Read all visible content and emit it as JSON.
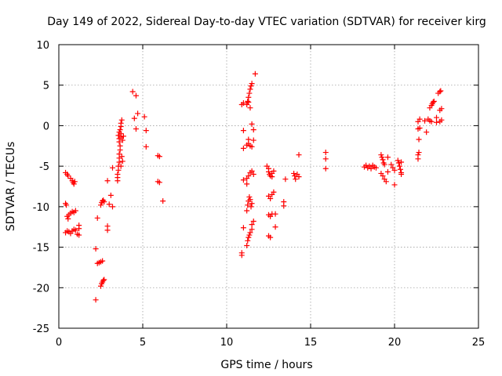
{
  "chart_data": {
    "type": "scatter",
    "title": "Day 149 of 2022, Sidereal Day-to-day VTEC variation (SDTVAR) for receiver kirg",
    "xlabel": "GPS time / hours",
    "ylabel": "SDTVAR / TECUs",
    "xlim": [
      0,
      25
    ],
    "ylim": [
      -25,
      10
    ],
    "xticks": [
      "0",
      "5",
      "10",
      "15",
      "20",
      "25"
    ],
    "yticks": [
      "-25",
      "-20",
      "-15",
      "-10",
      "-5",
      "0",
      "5",
      "10"
    ],
    "grid": true,
    "marker": "plus",
    "color": "#ff0000",
    "points": [
      [
        0.4,
        -5.8
      ],
      [
        0.5,
        -6.0
      ],
      [
        0.55,
        -6.2
      ],
      [
        0.7,
        -6.5
      ],
      [
        0.8,
        -6.8
      ],
      [
        0.85,
        -7.0
      ],
      [
        0.9,
        -7.2
      ],
      [
        0.95,
        -6.9
      ],
      [
        0.4,
        -9.6
      ],
      [
        0.45,
        -9.8
      ],
      [
        0.5,
        -11.2
      ],
      [
        0.55,
        -11.5
      ],
      [
        0.6,
        -11.0
      ],
      [
        0.7,
        -10.8
      ],
      [
        0.8,
        -10.6
      ],
      [
        0.9,
        -10.7
      ],
      [
        1.0,
        -10.5
      ],
      [
        0.4,
        -13.2
      ],
      [
        0.5,
        -13.0
      ],
      [
        0.6,
        -13.1
      ],
      [
        0.7,
        -13.3
      ],
      [
        0.8,
        -13.0
      ],
      [
        0.9,
        -12.8
      ],
      [
        1.0,
        -12.9
      ],
      [
        1.1,
        -13.4
      ],
      [
        1.2,
        -12.3
      ],
      [
        1.2,
        -12.7
      ],
      [
        1.2,
        -13.5
      ],
      [
        2.2,
        -21.5
      ],
      [
        2.2,
        -15.2
      ],
      [
        2.3,
        -17.0
      ],
      [
        2.4,
        -16.9
      ],
      [
        2.5,
        -16.8
      ],
      [
        2.6,
        -16.7
      ],
      [
        2.3,
        -11.4
      ],
      [
        2.5,
        -19.8
      ],
      [
        2.55,
        -19.5
      ],
      [
        2.6,
        -19.3
      ],
      [
        2.65,
        -19.1
      ],
      [
        2.7,
        -19.0
      ],
      [
        2.5,
        -9.8
      ],
      [
        2.55,
        -9.5
      ],
      [
        2.6,
        -9.3
      ],
      [
        2.65,
        -9.2
      ],
      [
        2.7,
        -9.4
      ],
      [
        2.9,
        -12.4
      ],
      [
        2.9,
        -12.9
      ],
      [
        2.9,
        -6.8
      ],
      [
        3.0,
        -9.7
      ],
      [
        3.1,
        -8.6
      ],
      [
        3.2,
        -10.0
      ],
      [
        3.2,
        -5.2
      ],
      [
        3.5,
        -6.8
      ],
      [
        3.5,
        -6.4
      ],
      [
        3.5,
        -6.0
      ],
      [
        3.55,
        -5.5
      ],
      [
        3.55,
        -5.0
      ],
      [
        3.6,
        -4.5
      ],
      [
        3.6,
        -4.0
      ],
      [
        3.6,
        -3.5
      ],
      [
        3.65,
        -3.0
      ],
      [
        3.65,
        -2.5
      ],
      [
        3.6,
        -2.0
      ],
      [
        3.6,
        -1.6
      ],
      [
        3.55,
        -1.2
      ],
      [
        3.6,
        -0.8
      ],
      [
        3.7,
        -1.4
      ],
      [
        3.7,
        -1.0
      ],
      [
        3.65,
        -0.5
      ],
      [
        3.7,
        -0.1
      ],
      [
        3.7,
        0.3
      ],
      [
        3.75,
        0.7
      ],
      [
        3.75,
        -3.8
      ],
      [
        3.8,
        -4.4
      ],
      [
        3.7,
        -5.0
      ],
      [
        3.8,
        -1.8
      ],
      [
        3.85,
        -1.3
      ],
      [
        4.4,
        4.2
      ],
      [
        4.6,
        3.7
      ],
      [
        4.5,
        0.9
      ],
      [
        4.7,
        1.5
      ],
      [
        4.6,
        -0.4
      ],
      [
        5.1,
        1.1
      ],
      [
        5.2,
        -0.6
      ],
      [
        5.2,
        -2.6
      ],
      [
        5.9,
        -3.7
      ],
      [
        6.0,
        -3.8
      ],
      [
        5.9,
        -6.9
      ],
      [
        6.0,
        -7.0
      ],
      [
        6.2,
        -9.3
      ],
      [
        10.9,
        -15.7
      ],
      [
        10.9,
        -16.0
      ],
      [
        11.0,
        -12.6
      ],
      [
        11.0,
        -6.7
      ],
      [
        11.0,
        -2.8
      ],
      [
        11.0,
        -0.6
      ],
      [
        10.9,
        2.6
      ],
      [
        11.0,
        2.8
      ],
      [
        11.2,
        -14.8
      ],
      [
        11.25,
        -14.2
      ],
      [
        11.3,
        -13.8
      ],
      [
        11.35,
        -13.5
      ],
      [
        11.4,
        -13.2
      ],
      [
        11.5,
        -12.8
      ],
      [
        11.5,
        -12.2
      ],
      [
        11.6,
        -11.8
      ],
      [
        11.2,
        -10.5
      ],
      [
        11.25,
        -9.8
      ],
      [
        11.3,
        -9.3
      ],
      [
        11.35,
        -8.8
      ],
      [
        11.4,
        -9.1
      ],
      [
        11.5,
        -9.6
      ],
      [
        11.45,
        -10.0
      ],
      [
        11.2,
        -6.5
      ],
      [
        11.3,
        -6.2
      ],
      [
        11.4,
        -5.8
      ],
      [
        11.5,
        -5.6
      ],
      [
        11.2,
        -7.2
      ],
      [
        11.6,
        -6.0
      ],
      [
        11.2,
        -2.4
      ],
      [
        11.3,
        -2.2
      ],
      [
        11.4,
        -2.5
      ],
      [
        11.5,
        -2.6
      ],
      [
        11.3,
        -1.7
      ],
      [
        11.6,
        -1.8
      ],
      [
        11.2,
        2.6
      ],
      [
        11.25,
        3.0
      ],
      [
        11.3,
        3.5
      ],
      [
        11.35,
        4.0
      ],
      [
        11.4,
        4.5
      ],
      [
        11.45,
        4.9
      ],
      [
        11.5,
        5.2
      ],
      [
        11.4,
        2.2
      ],
      [
        11.3,
        2.9
      ],
      [
        11.5,
        0.2
      ],
      [
        11.6,
        -0.5
      ],
      [
        11.7,
        6.4
      ],
      [
        12.4,
        -5.0
      ],
      [
        12.5,
        -5.3
      ],
      [
        12.5,
        -5.7
      ],
      [
        12.55,
        -6.0
      ],
      [
        12.6,
        -6.2
      ],
      [
        12.7,
        -5.9
      ],
      [
        12.8,
        -5.6
      ],
      [
        12.7,
        -6.3
      ],
      [
        12.5,
        -8.7
      ],
      [
        12.6,
        -9.0
      ],
      [
        12.7,
        -8.5
      ],
      [
        12.8,
        -8.2
      ],
      [
        12.5,
        -11.0
      ],
      [
        12.6,
        -11.2
      ],
      [
        12.7,
        -10.9
      ],
      [
        12.5,
        -13.6
      ],
      [
        12.6,
        -13.8
      ],
      [
        12.9,
        -12.5
      ],
      [
        12.9,
        -10.9
      ],
      [
        13.4,
        -9.4
      ],
      [
        13.4,
        -9.9
      ],
      [
        13.5,
        -6.6
      ],
      [
        14.0,
        -5.9
      ],
      [
        14.05,
        -6.2
      ],
      [
        14.1,
        -6.6
      ],
      [
        14.2,
        -6.0
      ],
      [
        14.3,
        -3.6
      ],
      [
        14.3,
        -6.3
      ],
      [
        15.9,
        -3.3
      ],
      [
        15.9,
        -4.1
      ],
      [
        15.9,
        -5.3
      ],
      [
        18.2,
        -5.1
      ],
      [
        18.3,
        -4.9
      ],
      [
        18.4,
        -5.2
      ],
      [
        18.5,
        -5.0
      ],
      [
        18.6,
        -5.3
      ],
      [
        18.7,
        -4.9
      ],
      [
        18.8,
        -5.1
      ],
      [
        18.9,
        -5.2
      ],
      [
        19.2,
        -3.6
      ],
      [
        19.25,
        -3.9
      ],
      [
        19.3,
        -4.2
      ],
      [
        19.35,
        -4.6
      ],
      [
        19.4,
        -4.8
      ],
      [
        19.2,
        -5.9
      ],
      [
        19.3,
        -6.2
      ],
      [
        19.4,
        -6.6
      ],
      [
        19.5,
        -6.9
      ],
      [
        19.6,
        -5.7
      ],
      [
        19.6,
        -3.9
      ],
      [
        19.8,
        -4.8
      ],
      [
        19.9,
        -5.2
      ],
      [
        20.0,
        -5.5
      ],
      [
        20.0,
        -7.3
      ],
      [
        20.2,
        -4.3
      ],
      [
        20.25,
        -4.6
      ],
      [
        20.3,
        -5.0
      ],
      [
        20.35,
        -5.4
      ],
      [
        20.4,
        -5.8
      ],
      [
        20.4,
        -6.0
      ],
      [
        20.4,
        -4.5
      ],
      [
        21.4,
        -4.1
      ],
      [
        21.4,
        -3.6
      ],
      [
        21.45,
        -3.3
      ],
      [
        21.45,
        -1.7
      ],
      [
        21.4,
        -0.4
      ],
      [
        21.5,
        -0.3
      ],
      [
        21.4,
        0.5
      ],
      [
        21.5,
        0.8
      ],
      [
        21.8,
        0.6
      ],
      [
        21.9,
        -0.8
      ],
      [
        22.0,
        0.8
      ],
      [
        22.1,
        0.6
      ],
      [
        22.2,
        0.5
      ],
      [
        22.1,
        2.2
      ],
      [
        22.2,
        2.5
      ],
      [
        22.25,
        2.7
      ],
      [
        22.3,
        2.9
      ],
      [
        22.35,
        3.0
      ],
      [
        22.5,
        0.4
      ],
      [
        22.5,
        1.0
      ],
      [
        22.6,
        4.0
      ],
      [
        22.7,
        4.2
      ],
      [
        22.75,
        4.3
      ],
      [
        22.7,
        1.9
      ],
      [
        22.8,
        2.1
      ],
      [
        22.7,
        0.5
      ],
      [
        22.8,
        0.7
      ]
    ]
  }
}
